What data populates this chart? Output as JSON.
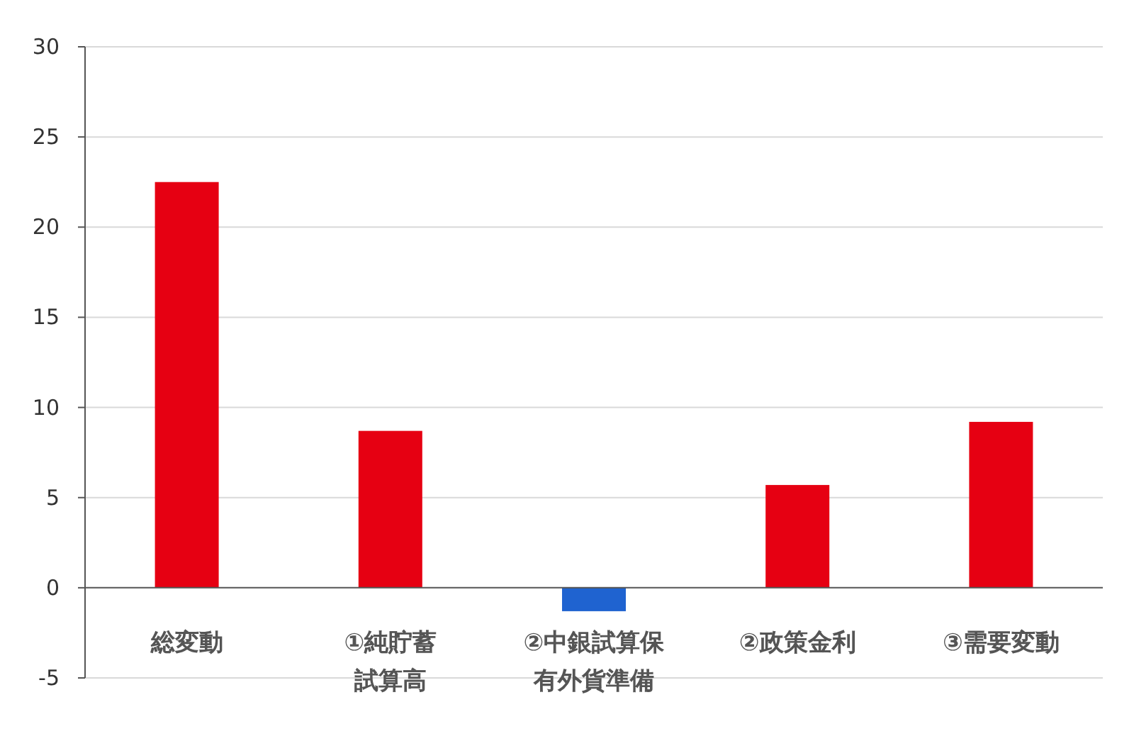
{
  "chart_data": {
    "type": "bar",
    "categories": [
      "総変動",
      "①純貯蓄試算高",
      "②中銀試算保有外貨準備",
      "②政策金利",
      "③需要変動"
    ],
    "values": [
      22.5,
      8.7,
      -1.3,
      5.7,
      9.2
    ],
    "colors": [
      "#e60012",
      "#e60012",
      "#1f63d0",
      "#e60012",
      "#e60012"
    ],
    "ylim": [
      -5,
      30
    ],
    "yticks": [
      -5,
      0,
      5,
      10,
      15,
      20,
      25,
      30
    ],
    "grid": "y"
  }
}
